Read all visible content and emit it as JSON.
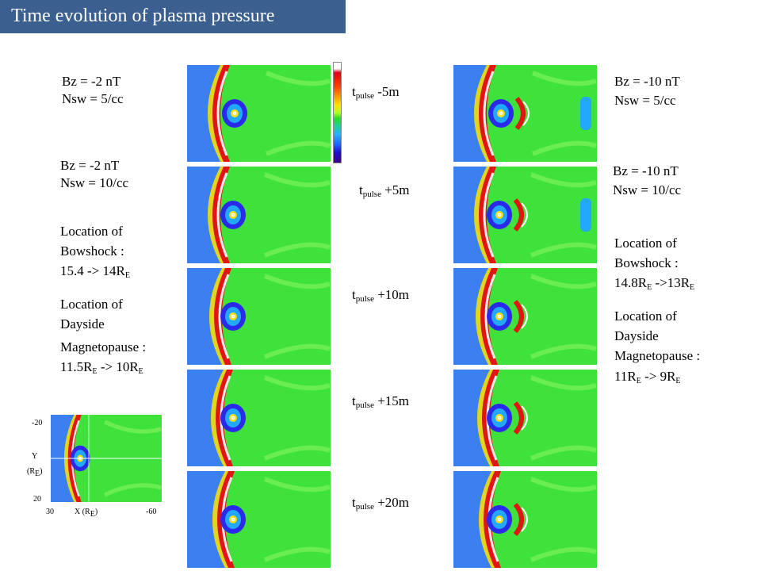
{
  "title": "Time evolution of plasma pressure",
  "left_case": {
    "bz": "Bz = -2 nT",
    "nsw_a": "Nsw = 5/cc",
    "bz_b": "Bz = -2 nT",
    "nsw_b": "Nsw = 10/cc",
    "bowshock_l1": "Location of",
    "bowshock_l2": "Bowshock  :",
    "bowshock_l3": "15.4 -> 14R",
    "mp_l1": "Location of",
    "mp_l2": "Dayside",
    "mp_l3": "Magnetopause :",
    "mp_l4a": "11.5R",
    "mp_l4b": " -> 10R"
  },
  "right_case": {
    "bz": "Bz = -10 nT",
    "nsw_a": "Nsw = 5/cc",
    "bz_b": "Bz = -10 nT",
    "nsw_b": "Nsw = 10/cc",
    "bowshock_l1": "Location of",
    "bowshock_l2": "Bowshock :",
    "bowshock_l3a": "14.8R",
    "bowshock_l3b": " ->13R",
    "mp_l1": "Location of",
    "mp_l2": "Dayside",
    "mp_l3": "Magnetopause :",
    "mp_l4a": "11R",
    "mp_l4b": " -> 9R"
  },
  "subscript_E": "E",
  "time_labels": [
    {
      "t": "t",
      "sub": "pulse",
      "val": " -5m"
    },
    {
      "t": "t",
      "sub": "pulse",
      "val": " +5m"
    },
    {
      "t": "t",
      "sub": "pulse",
      "val": " +10m"
    },
    {
      "t": "t",
      "sub": "pulse",
      "val": " +15m"
    },
    {
      "t": "t",
      "sub": "pulse",
      "val": " +20m"
    }
  ],
  "axes": {
    "y_top": "-20",
    "y_label": "Y",
    "y_unit_a": "(R",
    "y_unit_b": ")",
    "y_bottom": "20",
    "x_left": "30",
    "x_label": "X (R",
    "x_label_end": ")",
    "x_right": "-60"
  },
  "colors": {
    "title_bg": "#3b5f8f",
    "bg_field": "#3fe23a",
    "solar_wind": "#3b7ff0",
    "compressed": "#e01515"
  }
}
